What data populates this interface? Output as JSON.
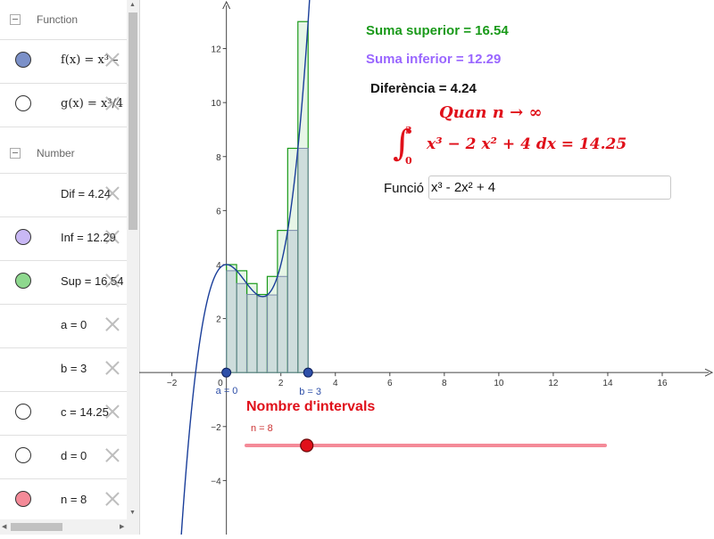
{
  "sidebar": {
    "groups": [
      {
        "label": "Function"
      },
      {
        "label": "Number"
      }
    ],
    "rows": [
      {
        "text": "f(x) = x³ –",
        "marble": "#7b90c8"
      },
      {
        "text": "g(x) = x³/4 –",
        "marble": "#ffffff"
      },
      {
        "text": "Dif = 4.24",
        "marble": ""
      },
      {
        "text": "Inf = 12.29",
        "marble": "#c9b8f5"
      },
      {
        "text": "Sup = 16.54",
        "marble": "#8ed88e"
      },
      {
        "text": "a = 0",
        "marble": ""
      },
      {
        "text": "b = 3",
        "marble": ""
      },
      {
        "text": "c = 14.25",
        "marble": "#ffffff"
      },
      {
        "text": "d = 0",
        "marble": "#ffffff"
      },
      {
        "text": "n = 8",
        "marble": "#f48a98"
      }
    ]
  },
  "graphics": {
    "suma_superior": "Suma superior = 16.54",
    "suma_inferior": "Suma inferior = 12.29",
    "diferencia": "Diferència = 4.24",
    "quan": "Quan n → ∞",
    "integral_symbol": "∫",
    "integral_upper": "3",
    "integral_lower": "0",
    "integral_expr": "x³ − 2 x² + 4  dx = 14.25",
    "function_label": "Funció",
    "function_input": "x³ - 2x² + 4",
    "nombre_intervals": "Nombre d'intervals",
    "slider_label": "n = 8",
    "slider_value": 8,
    "slider_min": 1,
    "slider_max": 50,
    "point_a_label": "a = 0",
    "point_b_label": "b = 3"
  },
  "chart_data": {
    "type": "line",
    "function": "x^3 - 2x^2 + 4",
    "interval": [
      0,
      3
    ],
    "n": 8,
    "x_ticks": [
      -2,
      2,
      4,
      6,
      8,
      10,
      12,
      14,
      16
    ],
    "y_ticks": [
      -4,
      -2,
      2,
      4,
      6,
      8,
      10,
      12
    ],
    "origin_label": "0",
    "xlim": [
      -3.2,
      17.9
    ],
    "ylim": [
      -6.0,
      13.8
    ],
    "colors": {
      "curve": "#1a3e9a",
      "upper": "#1a9a1a",
      "lower": "#7a8aaa",
      "slider": "#f48a98",
      "accent": "#e0101a"
    }
  }
}
